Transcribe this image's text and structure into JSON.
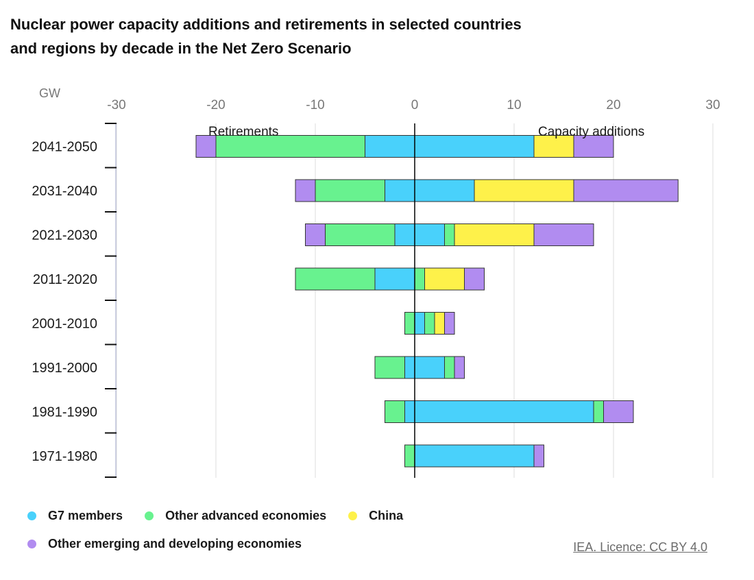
{
  "title": "Nuclear power capacity additions and retirements in selected countries and regions by decade in the Net Zero Scenario",
  "credit": "IEA. Licence: CC BY 4.0",
  "colors": {
    "g7": "#49d1fb",
    "other_advanced": "#68f28f",
    "china": "#fef14a",
    "emerging": "#b18cf0"
  },
  "chart_data": {
    "type": "bar",
    "orientation": "horizontal",
    "stacked": true,
    "unit_label": "GW",
    "xlim": [
      -30,
      30
    ],
    "x_ticks": [
      "-30",
      "-20",
      "-10",
      "0",
      "10",
      "20",
      "30"
    ],
    "annotations": [
      "Retirements",
      "Capacity additions"
    ],
    "categories": [
      "2041-2050",
      "2031-2040",
      "2021-2030",
      "2011-2020",
      "2001-2010",
      "1991-2000",
      "1981-1990",
      "1971-1980"
    ],
    "series": [
      {
        "name": "G7 members",
        "color": "#49d1fb",
        "additions": [
          12,
          6,
          3,
          0,
          1,
          3,
          18,
          12
        ],
        "retirements": [
          -5,
          -3,
          -2,
          -4,
          0,
          -1,
          -1,
          0
        ]
      },
      {
        "name": "Other advanced economies",
        "color": "#68f28f",
        "additions": [
          0,
          0,
          1,
          1,
          1,
          1,
          1,
          0
        ],
        "retirements": [
          -15,
          -7,
          -7,
          -8,
          -1,
          -3,
          -2,
          -1
        ]
      },
      {
        "name": "China",
        "color": "#fef14a",
        "additions": [
          4,
          10,
          8,
          4,
          1,
          0,
          0,
          0
        ],
        "retirements": [
          0,
          0,
          0,
          0,
          0,
          0,
          0,
          0
        ]
      },
      {
        "name": "Other emerging and developing economies",
        "color": "#b18cf0",
        "additions": [
          4,
          10.5,
          6,
          2,
          1,
          1,
          3,
          1
        ],
        "retirements": [
          -2,
          -2,
          -2,
          0,
          0,
          0,
          0,
          0
        ]
      }
    ]
  }
}
